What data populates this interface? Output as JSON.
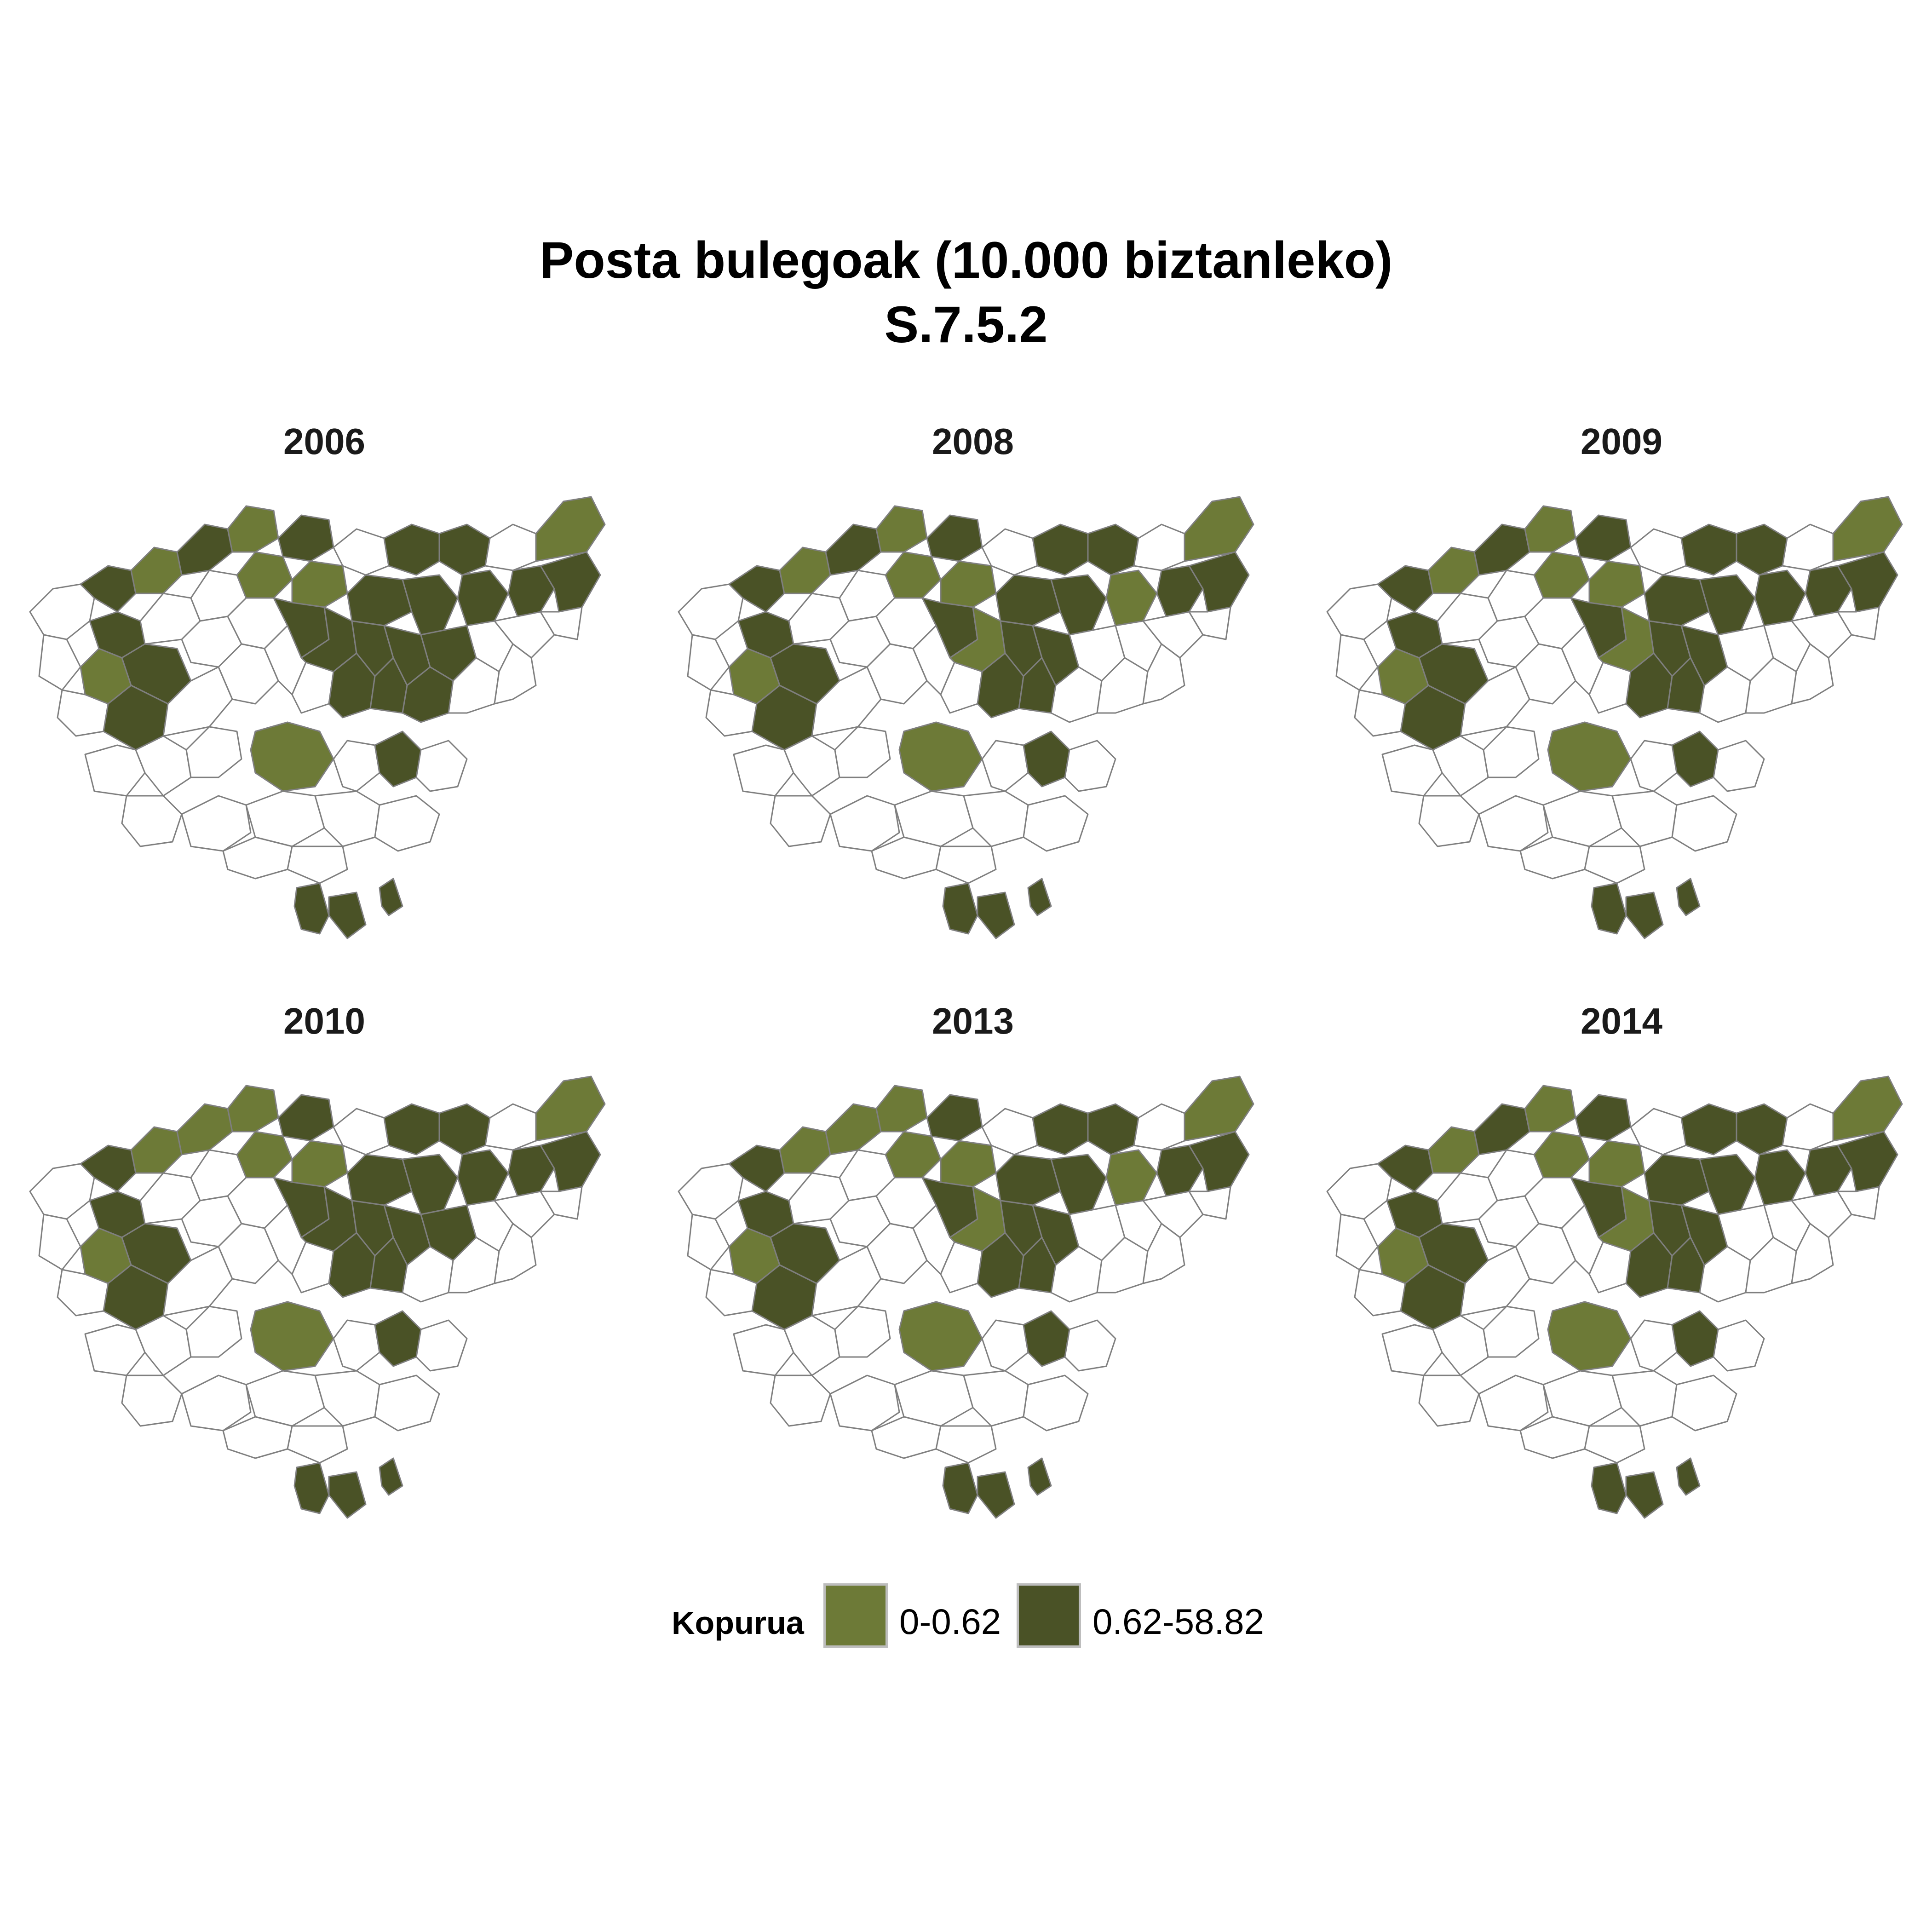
{
  "title": {
    "line1": "Posta bulegoak (10.000 biztanleko)",
    "line2": "S.7.5.2"
  },
  "colors": {
    "low": "#6d7a37",
    "high": "#4a5226",
    "none": "#ffffff",
    "border": "#7f7f7f"
  },
  "panels": [
    {
      "year": "2006"
    },
    {
      "year": "2008"
    },
    {
      "year": "2009"
    },
    {
      "year": "2010"
    },
    {
      "year": "2013"
    },
    {
      "year": "2014"
    }
  ],
  "legend": {
    "title": "Kopurua",
    "items": [
      {
        "label": "0-0.62",
        "color": "#6d7a37"
      },
      {
        "label": "0.62-58.82",
        "color": "#4a5226"
      }
    ]
  }
}
